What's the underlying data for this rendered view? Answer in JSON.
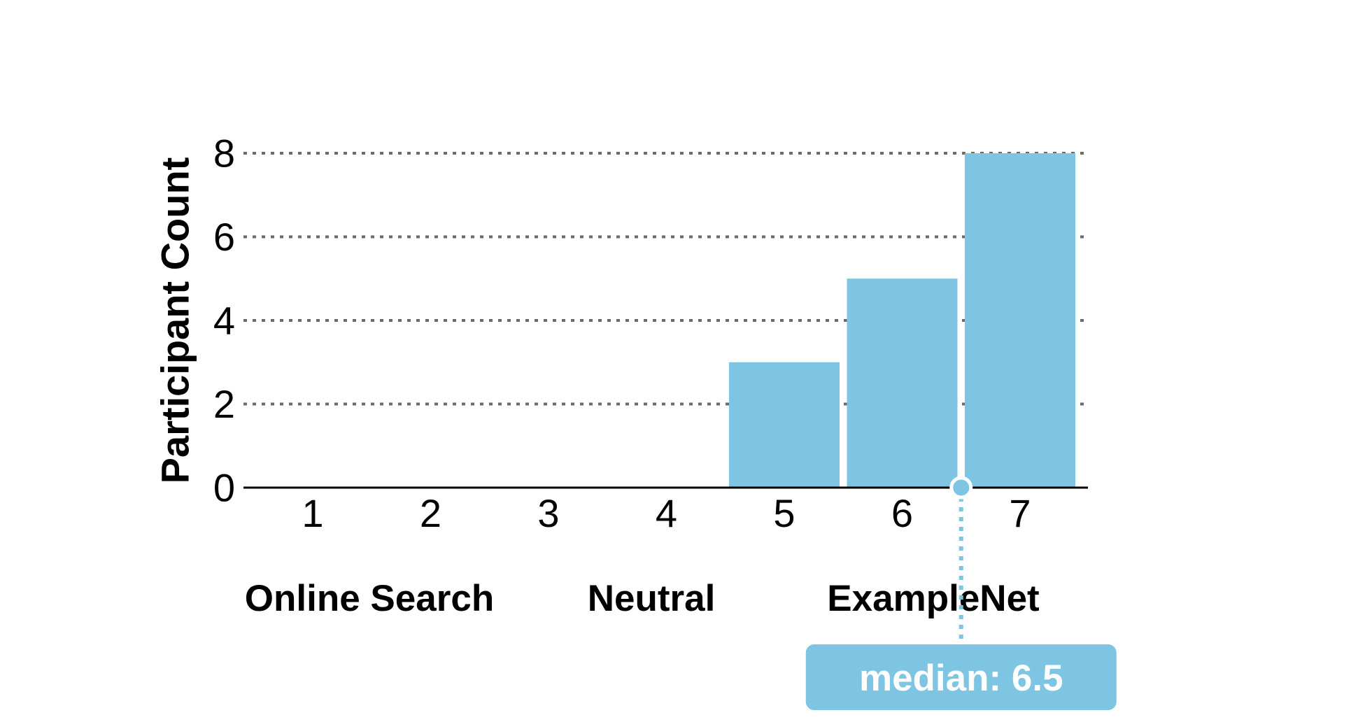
{
  "chart_data": {
    "type": "bar",
    "categories": [
      "1",
      "2",
      "3",
      "4",
      "5",
      "6",
      "7"
    ],
    "values": [
      0,
      0,
      0,
      0,
      3,
      5,
      8
    ],
    "ylabel": "Participant Count",
    "xlabel": "",
    "ylim": [
      0,
      8
    ],
    "yticks": [
      "0",
      "2",
      "4",
      "6",
      "8"
    ],
    "grid": "horizontal dotted",
    "bar_color": "#7ec5e4",
    "scale_labels": {
      "left": "Online Search",
      "middle": "Neutral",
      "right": "ExampleNet"
    },
    "median": {
      "value": 6.5,
      "label": "median: 6.5"
    }
  }
}
